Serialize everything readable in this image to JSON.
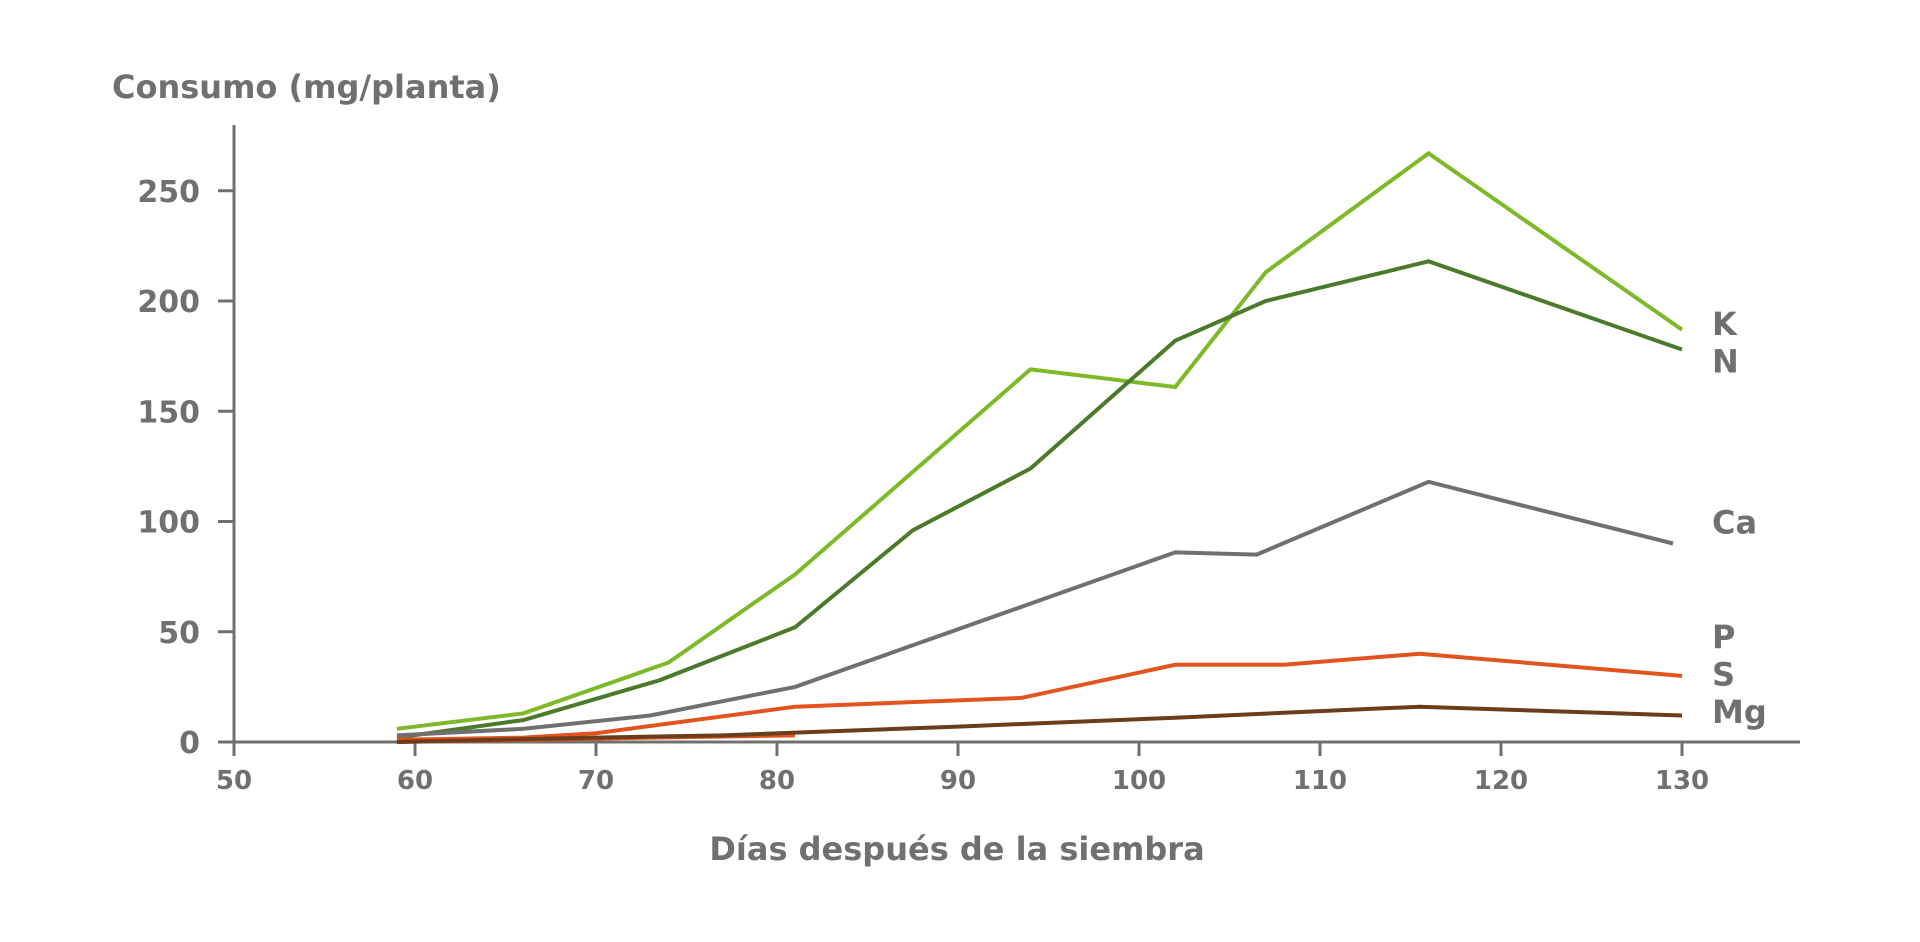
{
  "chart_data": {
    "type": "line",
    "ylabel": "Consumo (mg/planta)",
    "xlabel": "Días después de la siembra",
    "xlim": [
      50,
      135
    ],
    "ylim": [
      0,
      280
    ],
    "x_ticks": [
      50,
      60,
      70,
      80,
      90,
      100,
      110,
      120,
      130
    ],
    "y_ticks": [
      0,
      50,
      100,
      150,
      200,
      250
    ],
    "grid": false,
    "legend": "inline-right",
    "axis_color": "#707070",
    "series": [
      {
        "name": "K",
        "color": "#7db928",
        "label_y": 190,
        "points": [
          [
            59,
            6
          ],
          [
            66,
            13
          ],
          [
            74,
            36
          ],
          [
            81,
            76
          ],
          [
            94,
            169
          ],
          [
            102,
            161
          ],
          [
            107,
            213
          ],
          [
            116,
            267
          ],
          [
            130,
            187
          ]
        ]
      },
      {
        "name": "N",
        "color": "#4a7a2a",
        "label_y": 173,
        "points": [
          [
            59,
            2
          ],
          [
            66,
            10
          ],
          [
            73.5,
            28
          ],
          [
            81,
            52
          ],
          [
            87.5,
            96
          ],
          [
            94,
            124
          ],
          [
            102,
            182
          ],
          [
            107,
            200
          ],
          [
            116,
            218
          ],
          [
            130,
            178
          ]
        ]
      },
      {
        "name": "Ca",
        "color": "#707070",
        "label_y": 100,
        "points": [
          [
            59,
            3
          ],
          [
            66,
            6
          ],
          [
            73,
            12
          ],
          [
            81,
            25
          ],
          [
            102,
            86
          ],
          [
            106.5,
            85
          ],
          [
            116,
            118
          ],
          [
            129.5,
            90
          ]
        ]
      },
      {
        "name": "P",
        "color": "#e2531e",
        "label_y": 48,
        "points": [
          [
            59,
            1
          ],
          [
            66,
            2
          ],
          [
            70,
            4
          ],
          [
            81,
            16
          ],
          [
            93.5,
            20
          ],
          [
            102,
            35
          ],
          [
            108,
            35
          ],
          [
            115.5,
            40
          ],
          [
            130,
            30
          ]
        ]
      },
      {
        "name": "S",
        "color": "#e2531e",
        "label_y": 31,
        "points": [
          [
            59,
            0
          ],
          [
            66,
            1
          ],
          [
            73,
            2
          ],
          [
            81,
            3
          ]
        ]
      },
      {
        "name": "Mg",
        "color": "#6b3d1a",
        "label_y": 14,
        "points": [
          [
            59,
            0
          ],
          [
            70,
            2
          ],
          [
            77,
            3
          ],
          [
            90,
            7
          ],
          [
            102,
            11
          ],
          [
            115.5,
            16
          ],
          [
            130,
            12
          ]
        ]
      }
    ]
  }
}
